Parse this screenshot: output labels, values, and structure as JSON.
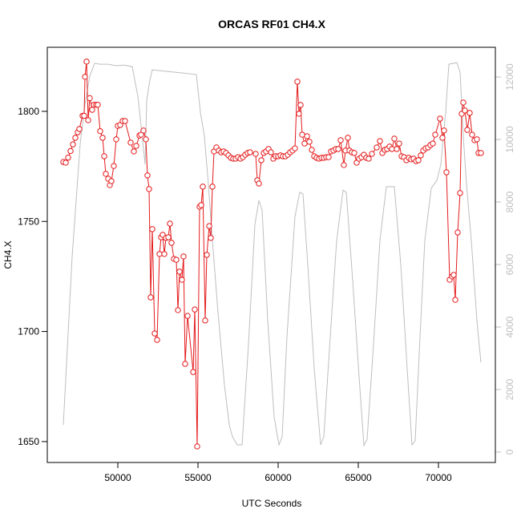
{
  "chart_data": {
    "type": "line",
    "title": "ORCAS RF01 CH4.X",
    "xlabel": "UTC Seconds",
    "ylabel": "CH4.X",
    "xlim": [
      45600,
      73550
    ],
    "ylim": [
      1640.5,
      1829.1
    ],
    "y2lim": [
      -333,
      12950
    ],
    "xticks": [
      50000,
      55000,
      60000,
      65000,
      70000
    ],
    "yticks": [
      1650,
      1700,
      1750,
      1800
    ],
    "y2ticks": [
      0,
      2000,
      4000,
      6000,
      8000,
      10000,
      12000
    ],
    "series": [
      {
        "color": "#bebebe",
        "axis": "y2",
        "markers": false,
        "x": [
          46600,
          47150,
          47650,
          47950,
          48250,
          48550,
          48900,
          49400,
          49900,
          50400,
          50900,
          51250,
          51550,
          51700,
          51800,
          52000,
          52150,
          52650,
          53650,
          54900,
          55150,
          55400,
          55650,
          55900,
          56250,
          56650,
          56950,
          57150,
          57450,
          57750,
          58150,
          58550,
          58800,
          59000,
          59350,
          59750,
          60050,
          60250,
          60550,
          61050,
          61350,
          61550,
          61850,
          62250,
          62650,
          62850,
          63250,
          63650,
          64050,
          64250,
          64650,
          65050,
          65350,
          65550,
          65950,
          66350,
          66750,
          67250,
          67650,
          68050,
          68350,
          68550,
          68850,
          69150,
          69550,
          69900,
          70150,
          70450,
          70650,
          71150,
          71350,
          71550,
          71750,
          72050,
          72400,
          72650
        ],
        "values": [
          870,
          6250,
          9850,
          11130,
          12030,
          12440,
          12410,
          12410,
          12360,
          12380,
          12330,
          11380,
          9970,
          9200,
          11260,
          11900,
          12230,
          12200,
          12150,
          12080,
          10870,
          10100,
          8560,
          6770,
          4460,
          2150,
          870,
          490,
          230,
          230,
          3440,
          7280,
          8050,
          7740,
          4210,
          1130,
          230,
          490,
          3690,
          7540,
          8310,
          8260,
          6000,
          2670,
          230,
          490,
          3690,
          6770,
          8380,
          8310,
          5490,
          2410,
          210,
          410,
          3440,
          6770,
          8490,
          8490,
          6000,
          2670,
          230,
          360,
          3690,
          6770,
          8440,
          8690,
          9200,
          10870,
          12410,
          12460,
          12150,
          10100,
          8560,
          6770,
          4210,
          2870
        ]
      },
      {
        "color": "#e41a1c",
        "markers": true,
        "x": [
          46600,
          46750,
          46900,
          47050,
          47200,
          47350,
          47500,
          47600,
          47800,
          47900,
          47950,
          48050,
          48150,
          48250,
          48400,
          48500,
          48650,
          48750,
          48900,
          49050,
          49150,
          49250,
          49400,
          49500,
          49600,
          49750,
          49900,
          50000,
          50150,
          50300,
          50450,
          50800,
          51000,
          51150,
          51350,
          51450,
          51600,
          51750,
          51850,
          51950,
          52050,
          52150,
          52300,
          52450,
          52600,
          52700,
          52800,
          52900,
          53000,
          53150,
          53250,
          53350,
          53500,
          53650,
          53750,
          53850,
          54000,
          54100,
          54200,
          54350,
          54700,
          54800,
          54950,
          55100,
          55200,
          55300,
          55450,
          55550,
          55700,
          55800,
          55900,
          56000,
          56150,
          56300,
          56450,
          56600,
          56750,
          56900,
          57050,
          57200,
          57350,
          57500,
          57650,
          57800,
          57950,
          58100,
          58250,
          58600,
          58700,
          58800,
          58950,
          59100,
          59250,
          59400,
          59550,
          59700,
          59850,
          60000,
          60150,
          60300,
          60450,
          60600,
          60750,
          60900,
          61050,
          61200,
          61300,
          61400,
          61500,
          61650,
          61800,
          61950,
          62100,
          62250,
          62400,
          62550,
          62700,
          62850,
          63000,
          63150,
          63300,
          63450,
          63600,
          63750,
          63900,
          64100,
          64200,
          64350,
          64450,
          64600,
          64750,
          64900,
          65050,
          65200,
          65350,
          65500,
          65650,
          65850,
          66150,
          66350,
          66500,
          66650,
          66800,
          66950,
          67100,
          67250,
          67400,
          67550,
          67700,
          67850,
          68000,
          68150,
          68300,
          68450,
          68600,
          68750,
          68900,
          69050,
          69200,
          69350,
          69500,
          69650,
          69800,
          70100,
          70250,
          70350,
          70500,
          70700,
          70850,
          70950,
          71050,
          71200,
          71350,
          71450,
          71550,
          71650,
          71800,
          71950,
          72100,
          72250,
          72400,
          72500,
          72650
        ],
        "values": [
          1777,
          1776.7,
          1779,
          1782,
          1785,
          1788,
          1790.5,
          1792,
          1798,
          1798,
          1815.7,
          1822.6,
          1796,
          1806,
          1800.7,
          1803,
          1803,
          1803,
          1791,
          1788,
          1779.6,
          1771.6,
          1769.4,
          1766.5,
          1768.3,
          1775.2,
          1787.3,
          1793.4,
          1793.8,
          1795.6,
          1795.6,
          1785.8,
          1781.8,
          1784.3,
          1789,
          1789.4,
          1791.3,
          1787.3,
          1770.9,
          1764.7,
          1715.5,
          1746.5,
          1699.1,
          1696.2,
          1735.2,
          1742.8,
          1743.9,
          1735.2,
          1742.5,
          1742.8,
          1749,
          1740.3,
          1733,
          1732.6,
          1709.7,
          1727.2,
          1723.5,
          1734.1,
          1685.3,
          1707.1,
          1681.6,
          1710,
          1647.8,
          1756.7,
          1757.4,
          1765.8,
          1705,
          1734.8,
          1747.9,
          1742.5,
          1765.8,
          1781.8,
          1783.6,
          1782.2,
          1781.4,
          1781.8,
          1781.1,
          1780,
          1778.9,
          1778.5,
          1778.5,
          1779.2,
          1778.5,
          1779.2,
          1780.3,
          1781.1,
          1781.4,
          1780.7,
          1768.7,
          1767.2,
          1777.8,
          1781.1,
          1781.8,
          1782.9,
          1781.4,
          1778.5,
          1779.6,
          1779.6,
          1780,
          1779.6,
          1779.6,
          1780.3,
          1781.4,
          1782.2,
          1783.2,
          1813.5,
          1798.9,
          1802.9,
          1789.4,
          1785.4,
          1788.7,
          1786.2,
          1782.5,
          1779.6,
          1778.9,
          1778.5,
          1778.9,
          1778.9,
          1779.2,
          1779.2,
          1781.8,
          1782.2,
          1782.9,
          1782.9,
          1786.9,
          1775.6,
          1782.2,
          1788,
          1782.2,
          1781.4,
          1781.1,
          1776.7,
          1778.5,
          1779.2,
          1780.3,
          1778.9,
          1778.5,
          1780.7,
          1783.6,
          1786.5,
          1781.1,
          1782.5,
          1782.9,
          1784,
          1782.9,
          1787.6,
          1782.9,
          1785.4,
          1779.6,
          1779.2,
          1777.8,
          1778.9,
          1778.2,
          1778.5,
          1777.4,
          1777.8,
          1780,
          1782.2,
          1783.2,
          1783.6,
          1784.7,
          1785.4,
          1789.4,
          1796.7,
          1788,
          1791.3,
          1772.3,
          1723.5,
          1725,
          1725.7,
          1714.4,
          1745,
          1762.9,
          1798.9,
          1804,
          1800.4,
          1791.6,
          1799.3,
          1789.4,
          1786.9,
          1787.3,
          1781.1,
          1781.1
        ]
      }
    ]
  }
}
